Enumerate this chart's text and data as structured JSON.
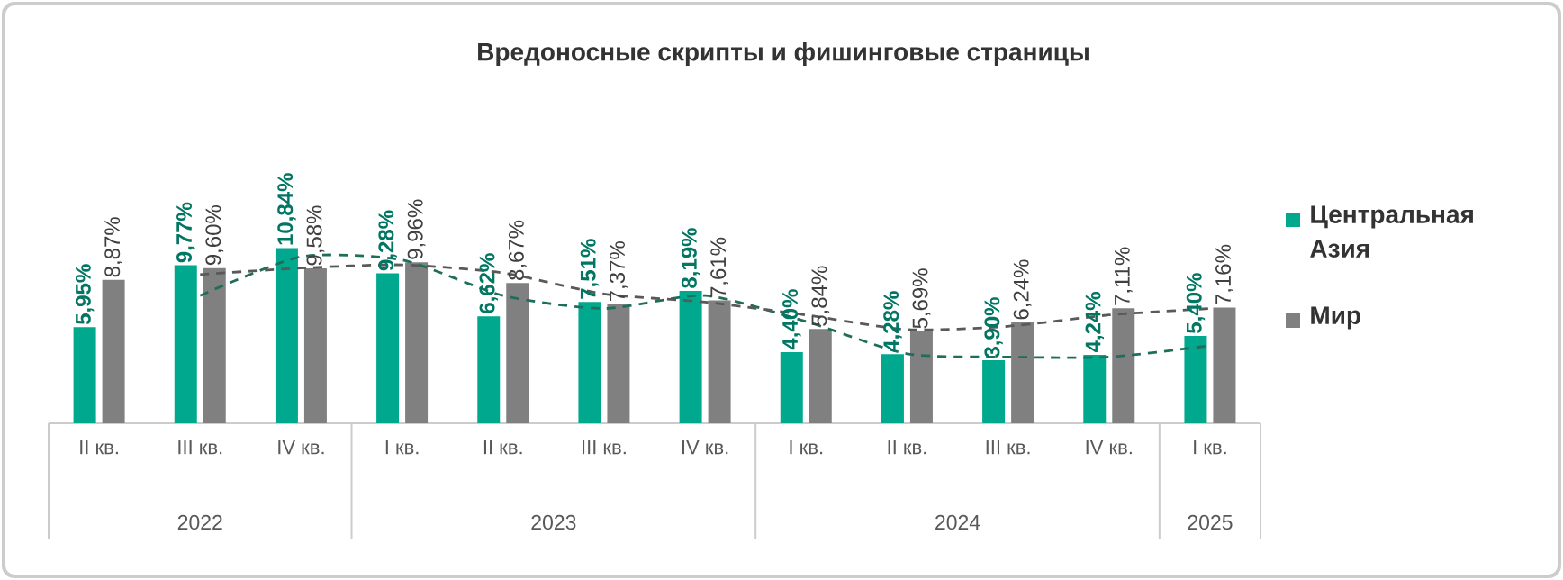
{
  "chart_data": {
    "type": "bar",
    "title": "Вредоносные скрипты и фишинговые страницы",
    "categories": [
      "II кв.",
      "III кв.",
      "IV кв.",
      "I кв.",
      "II кв.",
      "III кв.",
      "IV кв.",
      "I кв.",
      "II кв.",
      "III кв.",
      "IV кв.",
      "I кв."
    ],
    "series": [
      {
        "name": "Центральная Азия",
        "color": "#00a88e",
        "values": [
          5.95,
          9.77,
          10.84,
          9.28,
          6.62,
          7.51,
          8.19,
          4.4,
          4.28,
          3.9,
          4.24,
          5.4
        ],
        "value_labels": [
          "5,95%",
          "9,77%",
          "10,84%",
          "9,28%",
          "6,62%",
          "7,51%",
          "8,19%",
          "4,40%",
          "4,28%",
          "3,90%",
          "4,24%",
          "5,40%"
        ]
      },
      {
        "name": "Мир",
        "color": "#808080",
        "values": [
          8.87,
          9.6,
          9.58,
          9.96,
          8.67,
          7.37,
          7.61,
          5.84,
          5.69,
          6.24,
          7.11,
          7.16
        ],
        "value_labels": [
          "8,87%",
          "9,60%",
          "9,58%",
          "9,96%",
          "8,67%",
          "7,37%",
          "7,61%",
          "5,84%",
          "5,69%",
          "6,24%",
          "7,11%",
          "7,16%"
        ]
      },
      {
        "type": "line",
        "line_style": "dashed",
        "color": "#1f6e5c",
        "values": [
          null,
          7.9,
          10.3,
          10.1,
          7.9,
          7.1,
          7.9,
          6.3,
          4.3,
          4.1,
          4.1,
          4.8
        ]
      },
      {
        "type": "line",
        "line_style": "dashed",
        "color": "#595959",
        "values": [
          null,
          9.2,
          9.6,
          9.8,
          9.3,
          8.0,
          7.5,
          6.7,
          5.8,
          6.0,
          6.7,
          7.1
        ]
      }
    ],
    "annotations": [
      "2022",
      "2023",
      "2024",
      "2025"
    ],
    "legend": "right",
    "grid": false
  }
}
